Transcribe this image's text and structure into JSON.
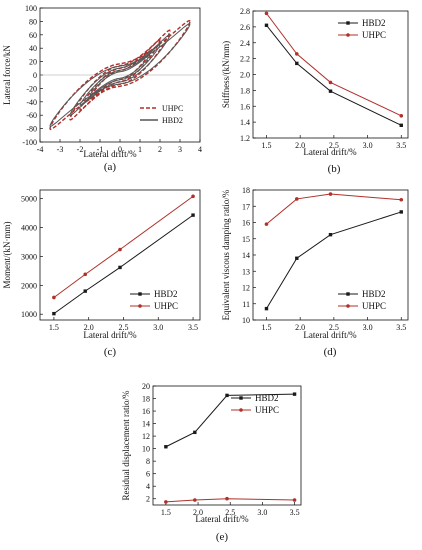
{
  "colors": {
    "hbd2": "#1a1a1a",
    "uhpc": "#b0302a",
    "hysteresis_hbd2": "#555555",
    "hysteresis_uhpc": "#b0302a",
    "band_uhpc": "#f4b6b6",
    "band_hbd2": "#d6d6d6"
  },
  "chart_data": [
    {
      "id": "a",
      "type": "line",
      "panel_label": "(a)",
      "xlabel": "Lateral drift/%",
      "ylabel": "Lateral force/kN",
      "xlim": [
        -4,
        4
      ],
      "ylim": [
        -100,
        100
      ],
      "xticks": [
        "-4",
        "-3",
        "-2",
        "-1",
        "0",
        "1",
        "2",
        "3",
        "4"
      ],
      "yticks": [
        "-100",
        "-80",
        "-60",
        "-40",
        "-20",
        "0",
        "20",
        "40",
        "60",
        "80",
        "100"
      ],
      "legend": "bottom-right",
      "series": [
        {
          "name": "UHPC",
          "style": "dashed",
          "loops": [
            {
              "amp": 1.5,
              "peak": 35,
              "k": 0.55
            },
            {
              "amp": 2.0,
              "peak": 52,
              "k": 0.55
            },
            {
              "amp": 2.5,
              "peak": 66,
              "k": 0.6
            },
            {
              "amp": 3.5,
              "peak": 80,
              "k": 0.6
            }
          ]
        },
        {
          "name": "HBD2",
          "style": "solid",
          "loops": [
            {
              "amp": 1.5,
              "peak": 30,
              "k": 0.45
            },
            {
              "amp": 2.0,
              "peak": 45,
              "k": 0.45
            },
            {
              "amp": 2.5,
              "peak": 60,
              "k": 0.5
            },
            {
              "amp": 3.5,
              "peak": 76,
              "k": 0.5
            }
          ]
        }
      ]
    },
    {
      "id": "b",
      "type": "line",
      "panel_label": "(b)",
      "xlabel": "Lateral drift/%",
      "ylabel": "Stiffness/(kN/mm)",
      "xlim": [
        1.3,
        3.6
      ],
      "ylim": [
        1.2,
        2.8
      ],
      "xticks": [
        1.5,
        2.0,
        2.5,
        3.0,
        3.5
      ],
      "xtick_labels": [
        "1.5",
        "2.0",
        "2.5",
        "3.0",
        "3.5"
      ],
      "yticks": [
        1.2,
        1.4,
        1.6,
        1.8,
        2.0,
        2.2,
        2.4,
        2.6,
        2.8
      ],
      "ytick_labels": [
        "1.2",
        "1.4",
        "1.6",
        "1.8",
        "2.0",
        "2.2",
        "2.4",
        "2.6",
        "2.8"
      ],
      "legend": "top-right",
      "series": [
        {
          "name": "HBD2",
          "x": [
            1.5,
            1.95,
            2.45,
            3.5
          ],
          "y": [
            2.62,
            2.14,
            1.79,
            1.36
          ]
        },
        {
          "name": "UHPC",
          "x": [
            1.5,
            1.95,
            2.45,
            3.5
          ],
          "y": [
            2.77,
            2.26,
            1.9,
            1.48
          ]
        }
      ]
    },
    {
      "id": "c",
      "type": "line",
      "panel_label": "(c)",
      "xlabel": "Lateral drift/%",
      "ylabel": "Moment/(kN·mm)",
      "xlim": [
        1.3,
        3.6
      ],
      "ylim": [
        800,
        5300
      ],
      "xticks": [
        1.5,
        2.0,
        2.5,
        3.0,
        3.5
      ],
      "xtick_labels": [
        "1.5",
        "2.0",
        "2.5",
        "3.0",
        "3.5"
      ],
      "yticks": [
        1000,
        2000,
        3000,
        4000,
        5000
      ],
      "ytick_labels": [
        "1000",
        "2000",
        "3000",
        "4000",
        "5000"
      ],
      "legend": "bottom-right",
      "series": [
        {
          "name": "HBD2",
          "x": [
            1.5,
            1.95,
            2.45,
            3.5
          ],
          "y": [
            1020,
            1800,
            2620,
            4430
          ]
        },
        {
          "name": "UHPC",
          "x": [
            1.5,
            1.95,
            2.45,
            3.5
          ],
          "y": [
            1580,
            2380,
            3240,
            5080
          ]
        }
      ]
    },
    {
      "id": "d",
      "type": "line",
      "panel_label": "(d)",
      "xlabel": "Lateral drift/%",
      "ylabel": "Equivalent viscous damping ratio/%",
      "xlim": [
        1.3,
        3.6
      ],
      "ylim": [
        10,
        18
      ],
      "xticks": [
        1.5,
        2.0,
        2.5,
        3.0,
        3.5
      ],
      "xtick_labels": [
        "1.5",
        "2.0",
        "2.5",
        "3.0",
        "3.5"
      ],
      "yticks": [
        10,
        11,
        12,
        13,
        14,
        15,
        16,
        17,
        18
      ],
      "ytick_labels": [
        "10",
        "11",
        "12",
        "13",
        "14",
        "15",
        "16",
        "17",
        "18"
      ],
      "legend": "bottom-right",
      "series": [
        {
          "name": "HBD2",
          "x": [
            1.5,
            1.95,
            2.45,
            3.5
          ],
          "y": [
            10.7,
            13.8,
            15.25,
            16.65
          ]
        },
        {
          "name": "UHPC",
          "x": [
            1.5,
            1.95,
            2.45,
            3.5
          ],
          "y": [
            15.9,
            17.45,
            17.75,
            17.4
          ]
        }
      ]
    },
    {
      "id": "e",
      "type": "line",
      "panel_label": "(e)",
      "xlabel": "Lateral drift/%",
      "ylabel": "Residual displacement ratio/%",
      "xlim": [
        1.3,
        3.6
      ],
      "ylim": [
        1,
        20
      ],
      "xticks": [
        1.5,
        2.0,
        2.5,
        3.0,
        3.5
      ],
      "xtick_labels": [
        "1.5",
        "2.0",
        "2.5",
        "3.0",
        "3.5"
      ],
      "yticks": [
        2,
        4,
        6,
        8,
        10,
        12,
        14,
        16,
        18,
        20
      ],
      "ytick_labels": [
        "2",
        "4",
        "6",
        "8",
        "10",
        "12",
        "14",
        "16",
        "18",
        "20"
      ],
      "legend": "top-right",
      "series": [
        {
          "name": "HBD2",
          "x": [
            1.5,
            1.95,
            2.45,
            3.5
          ],
          "y": [
            10.3,
            12.6,
            18.5,
            18.7
          ]
        },
        {
          "name": "UHPC",
          "x": [
            1.5,
            1.95,
            2.45,
            3.5
          ],
          "y": [
            1.5,
            1.8,
            2.0,
            1.8
          ]
        }
      ]
    }
  ]
}
